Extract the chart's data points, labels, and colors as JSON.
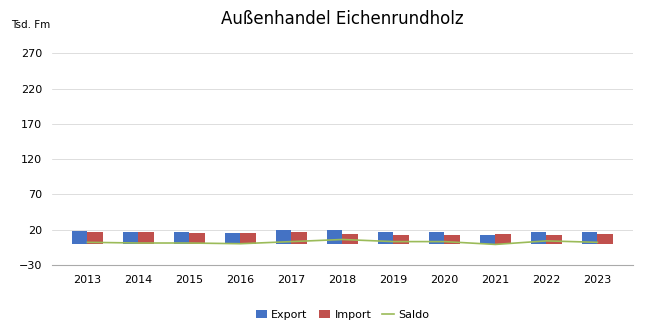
{
  "title": "Außenhandel Eichenrundholz",
  "ylabel": "Tsd. Fm",
  "years": [
    2013,
    2014,
    2015,
    2016,
    2017,
    2018,
    2019,
    2020,
    2021,
    2022,
    2023
  ],
  "export": [
    18,
    17,
    16,
    15,
    20,
    20,
    16,
    16,
    13,
    16,
    16
  ],
  "import": [
    16,
    16,
    15,
    15,
    17,
    14,
    13,
    13,
    14,
    12,
    14
  ],
  "saldo": [
    2,
    1,
    1,
    0,
    3,
    6,
    3,
    3,
    -1,
    4,
    2
  ],
  "export_color": "#4472C4",
  "import_color": "#C0504D",
  "saldo_color": "#9BBB59",
  "bar_width": 0.3,
  "ylim": [
    -30,
    300
  ],
  "yticks": [
    -30,
    20,
    70,
    120,
    170,
    220,
    270
  ],
  "background_color": "#ffffff",
  "legend_labels": [
    "Export",
    "Import",
    "Saldo"
  ]
}
